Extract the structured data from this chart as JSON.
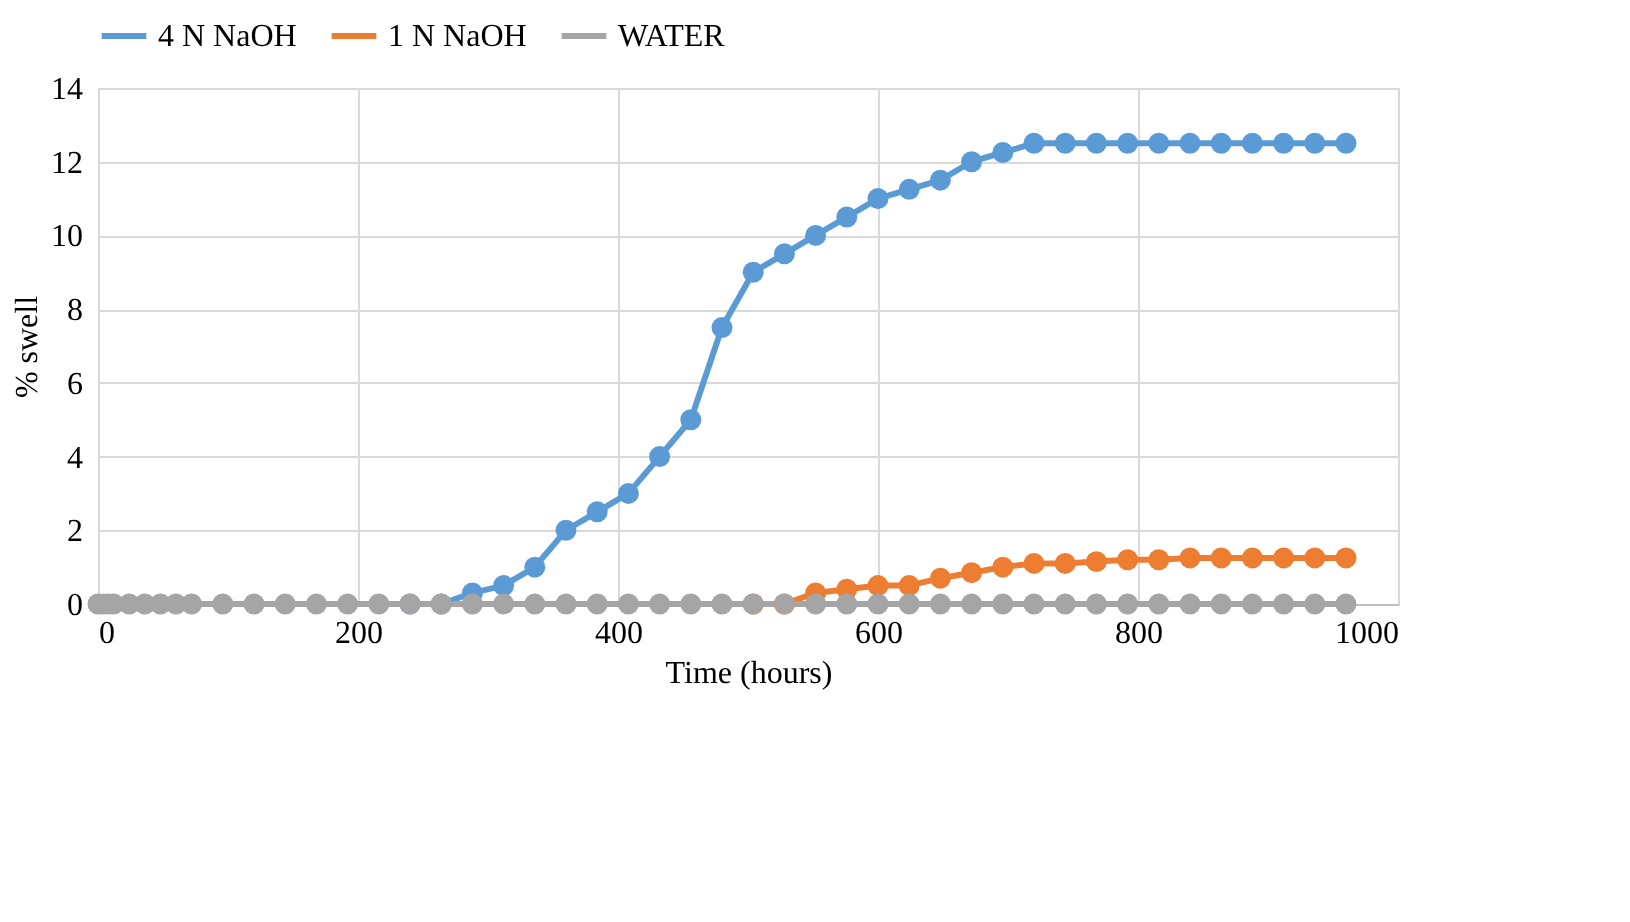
{
  "chart_data": {
    "type": "line",
    "xlabel": "Time (hours)",
    "ylabel": "% swell",
    "x": [
      0,
      4,
      8,
      12,
      24,
      36,
      48,
      60,
      72,
      96,
      120,
      144,
      168,
      192,
      216,
      240,
      264,
      288,
      312,
      336,
      360,
      384,
      408,
      432,
      456,
      480,
      504,
      528,
      552,
      576,
      600,
      624,
      648,
      672,
      696,
      720,
      744,
      768,
      792,
      816,
      840,
      864,
      888,
      912,
      936,
      960
    ],
    "series": [
      {
        "name": "4 N NaOH",
        "color": "#5b9bd5",
        "values": [
          null,
          null,
          null,
          null,
          null,
          null,
          null,
          null,
          null,
          null,
          null,
          null,
          null,
          null,
          null,
          0,
          0,
          0.3,
          0.5,
          1.0,
          2.0,
          2.5,
          3.0,
          4.0,
          5.0,
          7.5,
          9.0,
          9.5,
          10.0,
          10.5,
          11.0,
          11.25,
          11.5,
          12.0,
          12.25,
          12.5,
          12.5,
          12.5,
          12.5,
          12.5,
          12.5,
          12.5,
          12.5,
          12.5,
          12.5,
          12.5
        ]
      },
      {
        "name": "1 N NaOH",
        "color": "#ed7d31",
        "values": [
          null,
          null,
          null,
          null,
          null,
          null,
          null,
          null,
          null,
          null,
          null,
          null,
          null,
          null,
          null,
          null,
          null,
          null,
          null,
          null,
          null,
          null,
          null,
          null,
          null,
          null,
          0,
          0,
          0.3,
          0.4,
          0.5,
          0.5,
          0.7,
          0.85,
          1.0,
          1.1,
          1.1,
          1.15,
          1.2,
          1.2,
          1.25,
          1.25,
          1.25,
          1.25,
          1.25,
          1.25
        ]
      },
      {
        "name": "WATER",
        "color": "#a5a5a5",
        "values": [
          0,
          0,
          0,
          0,
          0,
          0,
          0,
          0,
          0,
          0,
          0,
          0,
          0,
          0,
          0,
          0,
          0,
          0,
          0,
          0,
          0,
          0,
          0,
          0,
          0,
          0,
          0,
          0,
          0,
          0,
          0,
          0,
          0,
          0,
          0,
          0,
          0,
          0,
          0,
          0,
          0,
          0,
          0,
          0,
          0,
          0
        ]
      }
    ],
    "xlim": [
      0,
      1000
    ],
    "xticks": [
      0,
      200,
      400,
      600,
      800,
      1000
    ],
    "ylim": [
      0,
      14
    ],
    "yticks": [
      0,
      2,
      4,
      6,
      8,
      10,
      12,
      14
    ],
    "grid": true,
    "legend": "top",
    "marker": "circle",
    "line_style": "solid"
  }
}
